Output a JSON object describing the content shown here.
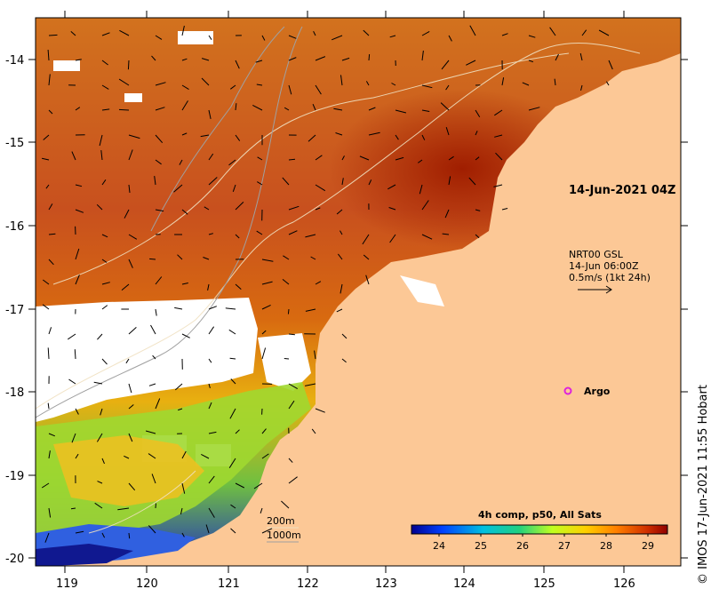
{
  "map": {
    "lon_ticks": [
      "119",
      "120",
      "121",
      "122",
      "123",
      "124",
      "125",
      "126"
    ],
    "lat_ticks": [
      "-14",
      "-15",
      "-16",
      "-17",
      "-18",
      "-19",
      "-20"
    ],
    "image_time": "14-Jun-2021 04Z",
    "currents": {
      "source": "NRT00 GSL",
      "time": "14-Jun 06:00Z",
      "scale": "0.5m/s (1kt 24h)"
    },
    "argo_label": "Argo",
    "isobaths": [
      "200m",
      "1000m"
    ],
    "colorbar": {
      "title": "4h comp, p50, All Sats",
      "ticks": [
        "24",
        "25",
        "26",
        "27",
        "28",
        "29"
      ]
    },
    "credit": "IMOS 17-Jun-2021 11:55 Hobart",
    "credit_symbol": "©",
    "colors": {
      "land": "#fcc896",
      "warm": "#c8501e",
      "hot": "#a01e00",
      "cloud": "#ffffff",
      "argo": "#dd22dd"
    }
  }
}
